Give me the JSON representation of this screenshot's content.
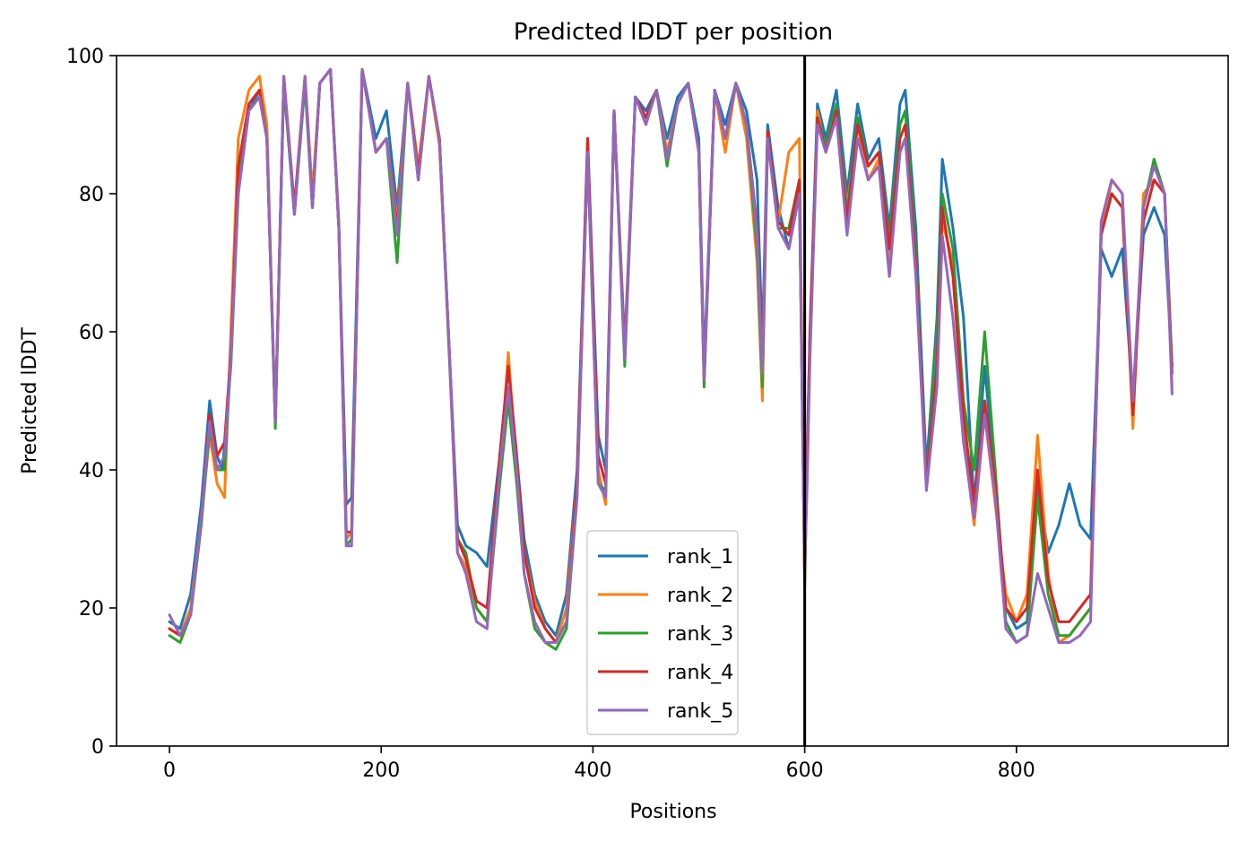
{
  "chart_data": {
    "type": "line",
    "title": "Predicted lDDT per position",
    "xlabel": "Positions",
    "ylabel": "Predicted lDDT",
    "xlim": [
      -50,
      1000
    ],
    "ylim": [
      0,
      100
    ],
    "xticks": [
      0,
      200,
      400,
      600,
      800
    ],
    "yticks": [
      0,
      20,
      40,
      60,
      80,
      100
    ],
    "grid": false,
    "legend_position": "bottom-center",
    "vline": {
      "x": 600,
      "color": "#000000"
    },
    "series": [
      {
        "name": "rank_1",
        "color": "#1f77b4",
        "x": [
          0,
          10,
          20,
          30,
          38,
          45,
          50,
          58,
          65,
          75,
          85,
          92,
          100,
          108,
          118,
          128,
          135,
          142,
          152,
          160,
          167,
          172,
          182,
          195,
          205,
          215,
          225,
          235,
          245,
          255,
          265,
          272,
          280,
          290,
          300,
          312,
          320,
          328,
          335,
          345,
          355,
          365,
          375,
          385,
          395,
          405,
          412,
          420,
          430,
          440,
          450,
          460,
          470,
          480,
          490,
          500,
          505,
          515,
          525,
          535,
          545,
          555,
          560,
          565,
          575,
          585,
          595,
          600,
          602,
          605,
          612,
          620,
          630,
          640,
          650,
          660,
          670,
          680,
          690,
          695,
          705,
          715,
          725,
          730,
          740,
          750,
          760,
          770,
          780,
          790,
          800,
          810,
          820,
          830,
          840,
          850,
          860,
          870,
          880,
          890,
          900,
          910,
          920,
          930,
          940,
          947
        ],
        "y": [
          18,
          17,
          22,
          35,
          50,
          42,
          40,
          55,
          80,
          92,
          95,
          88,
          47,
          96,
          77,
          96,
          78,
          96,
          98,
          75,
          35,
          36,
          98,
          88,
          92,
          78,
          96,
          82,
          97,
          88,
          55,
          32,
          29,
          28,
          26,
          42,
          55,
          42,
          30,
          22,
          18,
          16,
          22,
          40,
          88,
          45,
          40,
          92,
          58,
          94,
          92,
          95,
          88,
          94,
          96,
          88,
          55,
          95,
          90,
          96,
          92,
          82,
          58,
          90,
          78,
          72,
          80,
          23,
          40,
          60,
          93,
          88,
          95,
          80,
          93,
          85,
          88,
          75,
          93,
          95,
          75,
          40,
          62,
          85,
          75,
          62,
          35,
          55,
          38,
          20,
          17,
          18,
          38,
          28,
          32,
          38,
          32,
          30,
          72,
          68,
          72,
          50,
          74,
          78,
          74,
          55
        ]
      },
      {
        "name": "rank_2",
        "color": "#ff7f0e",
        "x": [
          0,
          10,
          20,
          30,
          38,
          45,
          52,
          58,
          65,
          75,
          85,
          92,
          100,
          108,
          118,
          128,
          135,
          142,
          152,
          160,
          167,
          172,
          182,
          195,
          205,
          215,
          225,
          235,
          245,
          255,
          265,
          272,
          280,
          290,
          300,
          312,
          320,
          328,
          335,
          345,
          355,
          365,
          375,
          385,
          395,
          405,
          412,
          420,
          430,
          440,
          450,
          460,
          470,
          480,
          490,
          500,
          505,
          515,
          525,
          535,
          545,
          555,
          560,
          565,
          575,
          585,
          595,
          600,
          602,
          605,
          612,
          620,
          630,
          640,
          650,
          660,
          670,
          680,
          690,
          695,
          705,
          715,
          725,
          730,
          740,
          750,
          760,
          770,
          780,
          790,
          800,
          810,
          820,
          830,
          840,
          850,
          860,
          870,
          880,
          890,
          900,
          910,
          920,
          930,
          940,
          947
        ],
        "y": [
          17,
          16,
          20,
          33,
          45,
          38,
          36,
          60,
          88,
          95,
          97,
          90,
          47,
          97,
          78,
          97,
          80,
          96,
          98,
          76,
          30,
          31,
          98,
          86,
          88,
          76,
          96,
          84,
          97,
          87,
          55,
          28,
          26,
          20,
          18,
          40,
          57,
          40,
          28,
          21,
          17,
          15,
          20,
          38,
          86,
          40,
          35,
          92,
          57,
          94,
          91,
          95,
          86,
          93,
          96,
          86,
          53,
          95,
          86,
          96,
          88,
          70,
          50,
          88,
          76,
          86,
          88,
          24,
          38,
          58,
          92,
          86,
          92,
          78,
          90,
          82,
          85,
          70,
          86,
          88,
          70,
          38,
          58,
          76,
          70,
          45,
          32,
          48,
          35,
          22,
          18,
          22,
          45,
          25,
          15,
          16,
          18,
          20,
          74,
          82,
          80,
          46,
          80,
          82,
          80,
          52
        ]
      },
      {
        "name": "rank_3",
        "color": "#2ca02c",
        "x": [
          0,
          10,
          20,
          30,
          38,
          45,
          52,
          58,
          65,
          75,
          85,
          92,
          100,
          108,
          118,
          128,
          135,
          142,
          152,
          160,
          167,
          172,
          182,
          195,
          205,
          215,
          225,
          235,
          245,
          255,
          265,
          272,
          280,
          290,
          300,
          312,
          320,
          328,
          335,
          345,
          355,
          365,
          375,
          385,
          395,
          405,
          412,
          420,
          430,
          440,
          450,
          460,
          470,
          480,
          490,
          500,
          505,
          515,
          525,
          535,
          545,
          555,
          560,
          565,
          575,
          585,
          595,
          600,
          602,
          605,
          612,
          620,
          630,
          640,
          650,
          660,
          670,
          680,
          690,
          695,
          705,
          715,
          725,
          730,
          740,
          750,
          760,
          770,
          780,
          790,
          800,
          810,
          820,
          830,
          840,
          850,
          860,
          870,
          880,
          890,
          900,
          910,
          920,
          930,
          940,
          947
        ],
        "y": [
          16,
          15,
          19,
          32,
          46,
          40,
          40,
          56,
          83,
          92,
          94,
          88,
          46,
          96,
          77,
          96,
          78,
          96,
          98,
          75,
          29,
          30,
          98,
          86,
          88,
          70,
          96,
          82,
          97,
          88,
          54,
          30,
          28,
          20,
          18,
          38,
          50,
          38,
          25,
          17,
          15,
          14,
          17,
          36,
          86,
          38,
          37,
          92,
          55,
          94,
          91,
          95,
          84,
          93,
          96,
          86,
          52,
          95,
          88,
          96,
          90,
          72,
          52,
          88,
          75,
          75,
          82,
          25,
          38,
          58,
          91,
          87,
          93,
          77,
          91,
          84,
          86,
          73,
          90,
          92,
          72,
          38,
          60,
          80,
          72,
          50,
          40,
          60,
          40,
          18,
          15,
          16,
          36,
          22,
          16,
          16,
          18,
          20,
          74,
          80,
          78,
          48,
          78,
          85,
          80,
          55
        ]
      },
      {
        "name": "rank_4",
        "color": "#d62728",
        "x": [
          0,
          10,
          20,
          30,
          38,
          45,
          52,
          58,
          65,
          75,
          85,
          92,
          100,
          108,
          118,
          128,
          135,
          142,
          152,
          160,
          167,
          172,
          182,
          195,
          205,
          215,
          225,
          235,
          245,
          255,
          265,
          272,
          280,
          290,
          300,
          312,
          320,
          328,
          335,
          345,
          355,
          365,
          375,
          385,
          395,
          405,
          412,
          420,
          430,
          440,
          450,
          460,
          470,
          480,
          490,
          500,
          505,
          515,
          525,
          535,
          545,
          555,
          560,
          565,
          575,
          585,
          595,
          600,
          602,
          605,
          612,
          620,
          630,
          640,
          650,
          660,
          670,
          680,
          690,
          695,
          705,
          715,
          725,
          730,
          740,
          750,
          760,
          770,
          780,
          790,
          800,
          810,
          820,
          830,
          840,
          850,
          860,
          870,
          880,
          890,
          900,
          910,
          920,
          930,
          940,
          947
        ],
        "y": [
          17,
          16,
          19,
          33,
          48,
          42,
          44,
          57,
          84,
          93,
          95,
          88,
          47,
          97,
          78,
          97,
          78,
          96,
          98,
          75,
          31,
          31,
          98,
          86,
          88,
          75,
          96,
          83,
          97,
          88,
          55,
          30,
          27,
          21,
          20,
          42,
          55,
          42,
          28,
          20,
          17,
          15,
          18,
          38,
          88,
          42,
          38,
          92,
          57,
          94,
          91,
          95,
          85,
          93,
          96,
          86,
          53,
          95,
          88,
          96,
          90,
          75,
          55,
          89,
          76,
          74,
          82,
          24,
          40,
          60,
          91,
          86,
          92,
          76,
          90,
          84,
          86,
          72,
          88,
          90,
          70,
          38,
          55,
          78,
          68,
          48,
          35,
          50,
          38,
          20,
          18,
          20,
          40,
          24,
          18,
          18,
          20,
          22,
          74,
          80,
          78,
          48,
          76,
          82,
          80,
          54
        ]
      },
      {
        "name": "rank_5",
        "color": "#9467bd",
        "x": [
          0,
          10,
          20,
          30,
          38,
          45,
          52,
          58,
          65,
          75,
          85,
          92,
          100,
          108,
          118,
          128,
          135,
          142,
          152,
          160,
          167,
          172,
          182,
          195,
          205,
          215,
          225,
          235,
          245,
          255,
          265,
          272,
          280,
          290,
          300,
          312,
          320,
          328,
          335,
          345,
          355,
          365,
          375,
          385,
          395,
          405,
          412,
          420,
          430,
          440,
          450,
          460,
          470,
          480,
          490,
          500,
          505,
          515,
          525,
          535,
          545,
          555,
          560,
          565,
          575,
          585,
          595,
          600,
          602,
          605,
          612,
          620,
          630,
          640,
          650,
          660,
          670,
          680,
          690,
          695,
          705,
          715,
          725,
          730,
          740,
          750,
          760,
          770,
          780,
          790,
          800,
          810,
          820,
          830,
          840,
          850,
          860,
          870,
          880,
          890,
          900,
          910,
          920,
          930,
          940,
          947
        ],
        "y": [
          19,
          16,
          19,
          33,
          47,
          40,
          42,
          56,
          80,
          92,
          94,
          88,
          47,
          97,
          77,
          97,
          78,
          96,
          98,
          75,
          29,
          29,
          98,
          86,
          88,
          74,
          96,
          82,
          97,
          88,
          55,
          28,
          25,
          18,
          17,
          40,
          52,
          40,
          25,
          18,
          15,
          15,
          18,
          36,
          86,
          38,
          36,
          92,
          56,
          94,
          90,
          95,
          85,
          93,
          96,
          86,
          53,
          95,
          88,
          96,
          90,
          74,
          54,
          88,
          75,
          72,
          80,
          26,
          36,
          56,
          90,
          86,
          91,
          74,
          88,
          82,
          84,
          68,
          86,
          88,
          68,
          37,
          52,
          74,
          62,
          44,
          33,
          48,
          36,
          17,
          15,
          16,
          25,
          20,
          15,
          15,
          16,
          18,
          76,
          82,
          80,
          50,
          78,
          84,
          80,
          51
        ]
      }
    ]
  }
}
